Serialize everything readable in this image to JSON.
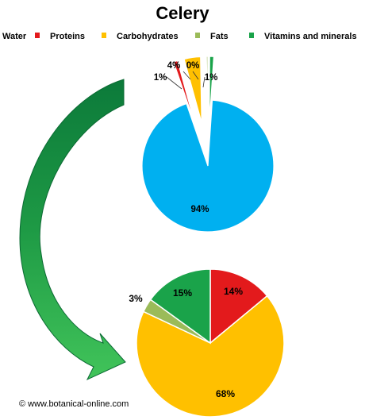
{
  "chart_data": [
    {
      "type": "pie",
      "title": "Celery",
      "legend": [
        {
          "label": "Water",
          "color": "#00b0f0"
        },
        {
          "label": "Proteins",
          "color": "#e31a1c"
        },
        {
          "label": "Carbohydrates",
          "color": "#ffc000"
        },
        {
          "label": "Fats",
          "color": "#9bbb59"
        },
        {
          "label": "Vitamins and minerals",
          "color": "#1aa34a"
        }
      ],
      "legend_position": "top",
      "slices": [
        {
          "label": "Water",
          "value": 94,
          "display": "94%",
          "color": "#00b0f0"
        },
        {
          "label": "Proteins",
          "value": 1,
          "display": "1%",
          "color": "#e31a1c"
        },
        {
          "label": "Carbohydrates",
          "value": 4,
          "display": "4%",
          "color": "#ffc000"
        },
        {
          "label": "Fats",
          "value": 0,
          "display": "0%",
          "color": "#9bbb59"
        },
        {
          "label": "Vitamins and minerals",
          "value": 1,
          "display": "1%",
          "color": "#1aa34a"
        }
      ]
    },
    {
      "type": "pie",
      "slices": [
        {
          "label": "Proteins",
          "value": 14,
          "display": "14%",
          "color": "#e31a1c"
        },
        {
          "label": "Carbohydrates",
          "value": 68,
          "display": "68%",
          "color": "#ffc000"
        },
        {
          "label": "Fats",
          "value": 3,
          "display": "3%",
          "color": "#9bbb59"
        },
        {
          "label": "Vitamins and minerals",
          "value": 15,
          "display": "15%",
          "color": "#1aa34a"
        }
      ]
    }
  ],
  "credit": "© www.botanical-online.com",
  "arrow_color": "#1e9a45"
}
